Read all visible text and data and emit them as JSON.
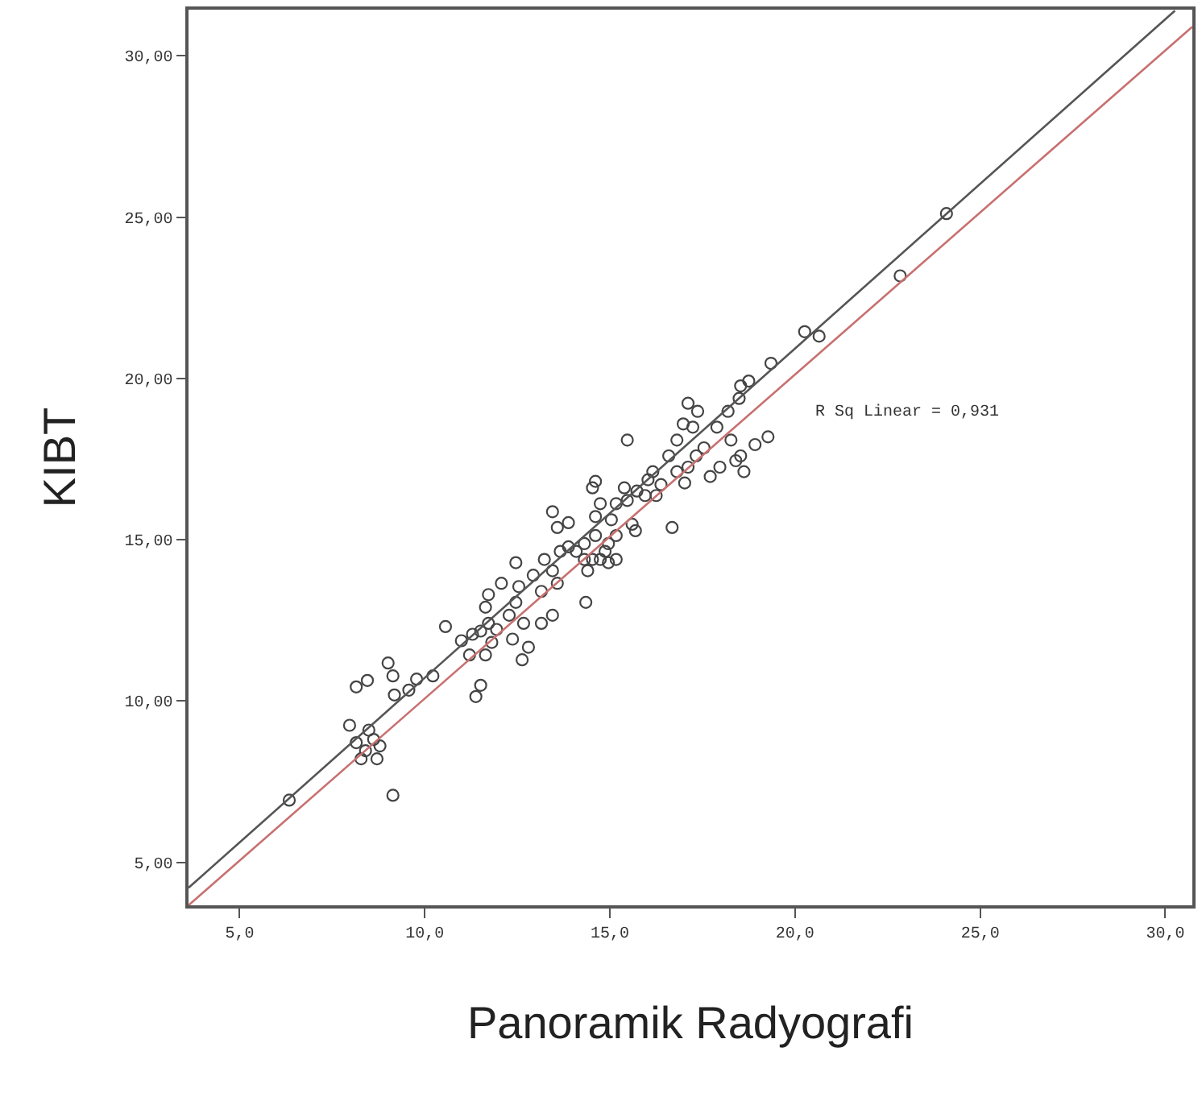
{
  "chart_data": {
    "type": "scatter",
    "xlabel": "Panoramik Radyografi",
    "ylabel": "KIBT",
    "xlim": [
      3.62,
      30.73
    ],
    "ylim": [
      3.67,
      31.43
    ],
    "xticks": [
      {
        "value": 5,
        "label": "5,0"
      },
      {
        "value": 10,
        "label": "10,0"
      },
      {
        "value": 15,
        "label": "15,0"
      },
      {
        "value": 20,
        "label": "20,0"
      },
      {
        "value": 25,
        "label": "25,0"
      },
      {
        "value": 30,
        "label": "30,0"
      }
    ],
    "yticks": [
      {
        "value": 5,
        "label": "5,00"
      },
      {
        "value": 10,
        "label": "10,00"
      },
      {
        "value": 15,
        "label": "15,00"
      },
      {
        "value": 20,
        "label": "20,00"
      },
      {
        "value": 25,
        "label": "25,00"
      },
      {
        "value": 30,
        "label": "30,00"
      }
    ],
    "annotations": [
      "R Sq Linear = 0,931"
    ],
    "series": [
      {
        "color": "#444444",
        "marker": "circle",
        "x": [
          6.34,
          9.14,
          7.97,
          8.15,
          8.4,
          8.62,
          8.28,
          8.71,
          8.49,
          8.79,
          8.15,
          8.45,
          9.01,
          9.14,
          9.18,
          9.57,
          9.78,
          10.22,
          10.56,
          11.38,
          11.51,
          11.21,
          10.99,
          11.29,
          11.51,
          11.72,
          11.64,
          11.81,
          11.64,
          12.07,
          11.72,
          11.94,
          12.28,
          12.46,
          12.67,
          12.37,
          12.8,
          12.63,
          12.54,
          12.93,
          13.15,
          12.46,
          13.23,
          13.45,
          13.58,
          13.66,
          13.88,
          13.15,
          13.45,
          13.45,
          13.58,
          13.88,
          14.09,
          14.31,
          14.31,
          14.53,
          14.61,
          14.35,
          14.4,
          14.74,
          14.87,
          14.96,
          15.17,
          14.61,
          14.74,
          14.53,
          14.61,
          15.04,
          15.17,
          15.39,
          15.47,
          15.73,
          15.17,
          14.96,
          15.6,
          15.95,
          15.69,
          16.03,
          16.25,
          16.38,
          15.47,
          16.16,
          16.59,
          16.81,
          16.68,
          17.02,
          17.11,
          17.33,
          17.54,
          16.81,
          16.98,
          17.24,
          17.11,
          17.37,
          18.19,
          18.49,
          18.53,
          18.75,
          17.89,
          18.27,
          18.53,
          18.4,
          18.62,
          17.71,
          17.97,
          18.92,
          19.27,
          19.35,
          20.26,
          20.65,
          22.84,
          24.09
        ],
        "values": [
          6.93,
          7.08,
          9.25,
          8.71,
          8.46,
          8.81,
          8.21,
          8.21,
          9.1,
          8.61,
          10.44,
          10.64,
          11.18,
          10.78,
          10.19,
          10.34,
          10.68,
          10.78,
          12.31,
          10.14,
          10.49,
          11.43,
          11.87,
          12.07,
          12.17,
          12.41,
          11.43,
          11.82,
          12.91,
          13.65,
          13.3,
          12.22,
          12.66,
          13.06,
          12.41,
          11.92,
          11.67,
          11.28,
          13.55,
          13.9,
          13.4,
          14.29,
          14.39,
          14.04,
          13.65,
          14.64,
          14.78,
          12.41,
          12.66,
          15.87,
          15.38,
          15.53,
          14.64,
          14.39,
          14.88,
          14.39,
          15.13,
          13.06,
          14.04,
          14.39,
          14.64,
          14.29,
          14.39,
          15.72,
          16.12,
          16.61,
          16.81,
          15.62,
          16.12,
          16.61,
          16.22,
          16.51,
          15.13,
          14.88,
          15.48,
          16.37,
          15.28,
          16.86,
          16.37,
          16.71,
          18.09,
          17.11,
          17.6,
          17.11,
          15.38,
          16.76,
          17.25,
          17.6,
          17.85,
          18.09,
          18.59,
          18.49,
          19.23,
          18.98,
          18.98,
          19.38,
          19.77,
          19.92,
          18.49,
          18.09,
          17.6,
          17.45,
          17.11,
          16.96,
          17.25,
          17.95,
          18.19,
          20.47,
          21.45,
          21.31,
          23.18,
          25.11
        ]
      },
      {
        "type": "line",
        "color": "#555555",
        "x": [
          3.62,
          30.26
        ],
        "values": [
          4.21,
          31.4
        ]
      },
      {
        "type": "line",
        "color": "#c87070",
        "x": [
          3.62,
          30.73
        ],
        "values": [
          3.67,
          30.9
        ]
      }
    ]
  }
}
